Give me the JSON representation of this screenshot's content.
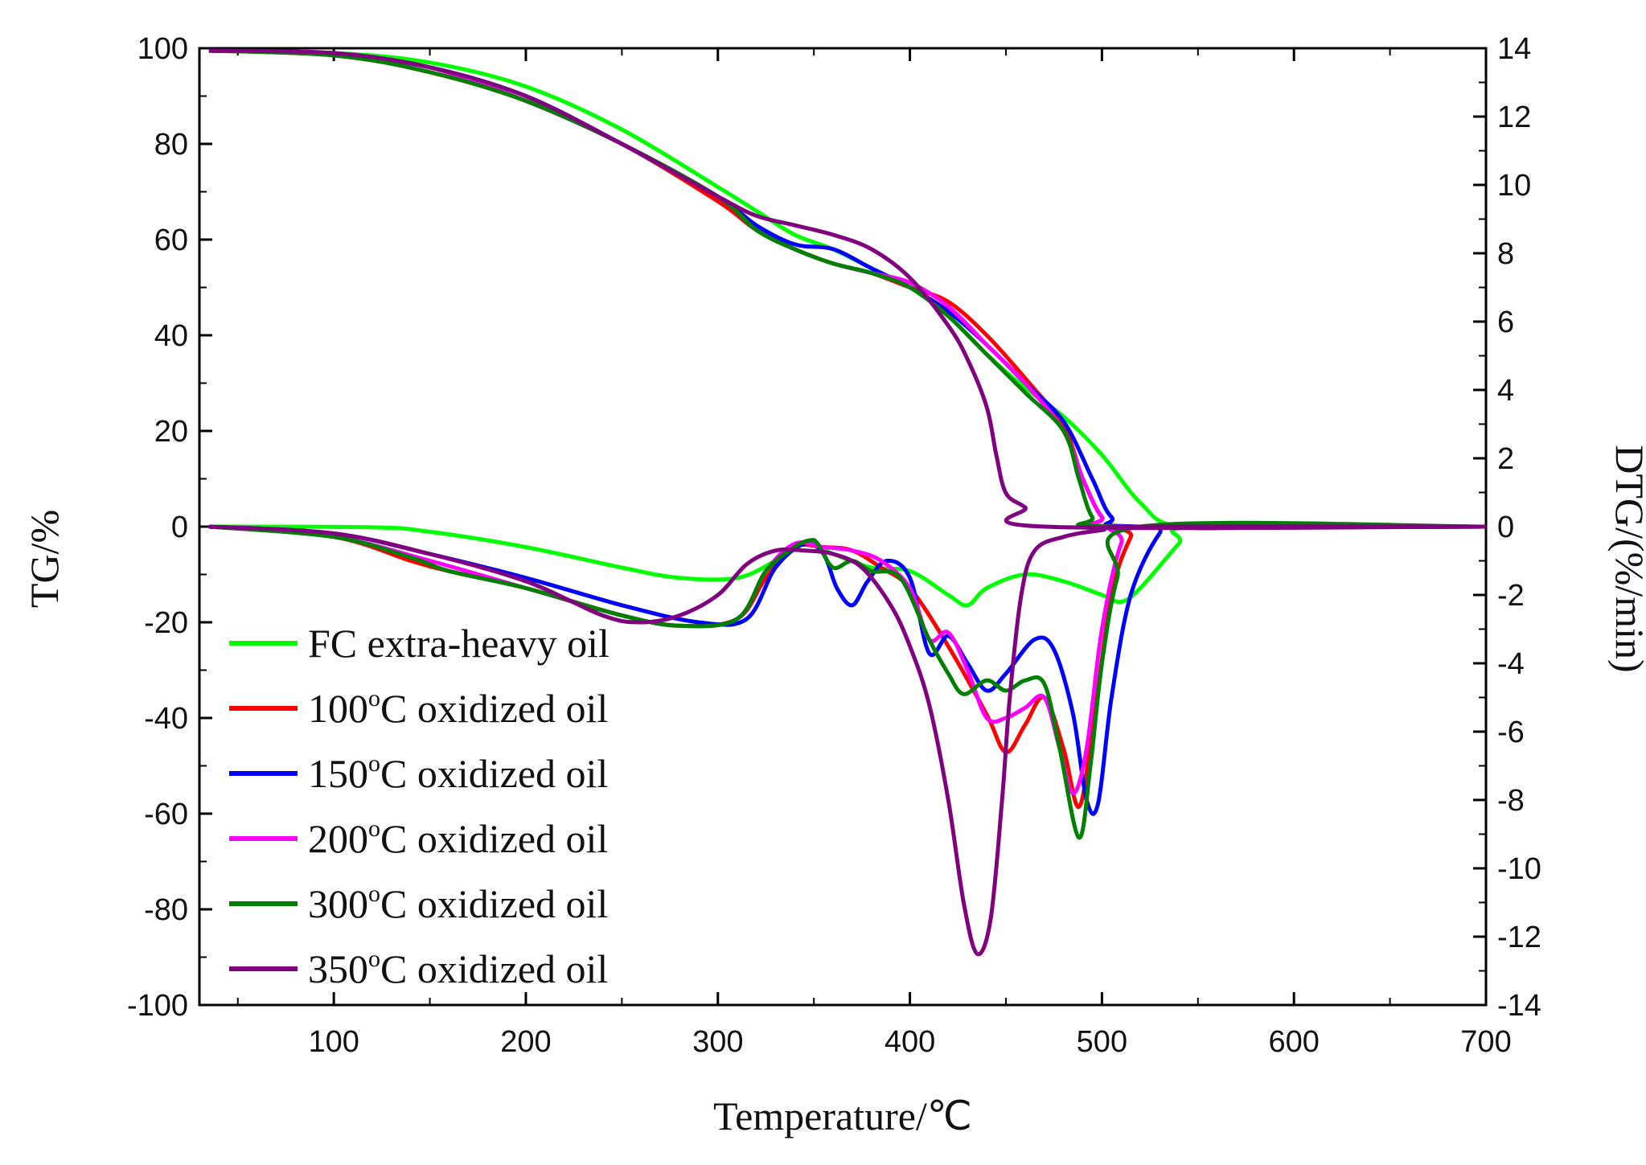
{
  "chart_data": {
    "type": "line",
    "xlabel": "Temperature/℃",
    "ylabel_left": "TG/%",
    "ylabel_right": "DTG/(%/min)",
    "xlim": [
      30,
      700
    ],
    "ylim_left": [
      -100,
      100
    ],
    "ylim_right": [
      -14,
      14
    ],
    "x_ticks": [
      "100",
      "200",
      "300",
      "400",
      "500",
      "600",
      "700"
    ],
    "y_ticks_left": [
      "100",
      "80",
      "60",
      "40",
      "20",
      "0",
      "-20",
      "-40",
      "-60",
      "-80",
      "-100"
    ],
    "y_ticks_right": [
      "14",
      "12",
      "10",
      "8",
      "6",
      "4",
      "2",
      "0",
      "-2",
      "-4",
      "-6",
      "-8",
      "-10",
      "-12",
      "-14"
    ],
    "legend_position": "lower-left",
    "series": [
      {
        "name": "FC extra-heavy oil",
        "legend_prefix": "FC extra-heavy oil",
        "legend_sup": "",
        "legend_suffix": "",
        "color": "#00ff00",
        "tg": [
          [
            35,
            99.5
          ],
          [
            100,
            99
          ],
          [
            150,
            97
          ],
          [
            200,
            92
          ],
          [
            250,
            83
          ],
          [
            300,
            71
          ],
          [
            320,
            66
          ],
          [
            340,
            61
          ],
          [
            360,
            58
          ],
          [
            380,
            54
          ],
          [
            400,
            50
          ],
          [
            420,
            44
          ],
          [
            440,
            36
          ],
          [
            460,
            29
          ],
          [
            480,
            23
          ],
          [
            500,
            15
          ],
          [
            520,
            5
          ],
          [
            540,
            0
          ],
          [
            600,
            0
          ],
          [
            700,
            0
          ]
        ],
        "dtg": [
          [
            35,
            0
          ],
          [
            120,
            -0.02
          ],
          [
            150,
            -0.15
          ],
          [
            200,
            -0.6
          ],
          [
            250,
            -1.2
          ],
          [
            280,
            -1.5
          ],
          [
            310,
            -1.5
          ],
          [
            330,
            -1.0
          ],
          [
            345,
            -0.5
          ],
          [
            360,
            -0.8
          ],
          [
            380,
            -1.2
          ],
          [
            400,
            -1.3
          ],
          [
            420,
            -2.0
          ],
          [
            430,
            -2.3
          ],
          [
            440,
            -1.8
          ],
          [
            460,
            -1.4
          ],
          [
            480,
            -1.6
          ],
          [
            500,
            -2.0
          ],
          [
            510,
            -2.2
          ],
          [
            520,
            -1.8
          ],
          [
            540,
            -0.5
          ],
          [
            550,
            0
          ],
          [
            700,
            0
          ]
        ]
      },
      {
        "name": "100°C oxidized oil",
        "legend_prefix": "100",
        "legend_sup": "o",
        "legend_suffix": "C oxidized oil",
        "color": "#ff0000",
        "tg": [
          [
            35,
            99.5
          ],
          [
            100,
            98.5
          ],
          [
            150,
            95
          ],
          [
            200,
            89
          ],
          [
            250,
            80
          ],
          [
            300,
            68
          ],
          [
            320,
            62
          ],
          [
            340,
            58
          ],
          [
            360,
            55
          ],
          [
            380,
            53
          ],
          [
            400,
            50
          ],
          [
            420,
            47
          ],
          [
            440,
            40
          ],
          [
            460,
            31
          ],
          [
            480,
            21
          ],
          [
            490,
            10
          ],
          [
            500,
            2
          ],
          [
            510,
            0
          ],
          [
            700,
            0
          ]
        ],
        "dtg": [
          [
            35,
            0
          ],
          [
            100,
            -0.3
          ],
          [
            140,
            -1.0
          ],
          [
            160,
            -1.3
          ],
          [
            200,
            -1.8
          ],
          [
            250,
            -2.6
          ],
          [
            280,
            -2.9
          ],
          [
            310,
            -2.7
          ],
          [
            325,
            -1.5
          ],
          [
            340,
            -0.6
          ],
          [
            355,
            -0.6
          ],
          [
            370,
            -0.7
          ],
          [
            385,
            -1.2
          ],
          [
            400,
            -1.8
          ],
          [
            420,
            -3.5
          ],
          [
            440,
            -5.5
          ],
          [
            450,
            -6.6
          ],
          [
            460,
            -5.8
          ],
          [
            470,
            -5.0
          ],
          [
            480,
            -6.5
          ],
          [
            488,
            -8.2
          ],
          [
            495,
            -6.0
          ],
          [
            505,
            -2.0
          ],
          [
            515,
            -0.3
          ],
          [
            520,
            0
          ],
          [
            700,
            0
          ]
        ]
      },
      {
        "name": "150°C oxidized oil",
        "legend_prefix": "150",
        "legend_sup": "o",
        "legend_suffix": "C oxidized oil",
        "color": "#0000ff",
        "tg": [
          [
            35,
            99.5
          ],
          [
            100,
            98.8
          ],
          [
            150,
            96
          ],
          [
            200,
            90
          ],
          [
            250,
            80
          ],
          [
            300,
            69
          ],
          [
            320,
            63
          ],
          [
            340,
            59
          ],
          [
            360,
            58
          ],
          [
            380,
            54
          ],
          [
            400,
            50
          ],
          [
            420,
            45
          ],
          [
            440,
            38
          ],
          [
            460,
            30
          ],
          [
            480,
            22
          ],
          [
            495,
            10
          ],
          [
            505,
            2
          ],
          [
            520,
            0
          ],
          [
            700,
            0
          ]
        ],
        "dtg": [
          [
            35,
            0
          ],
          [
            100,
            -0.2
          ],
          [
            150,
            -0.8
          ],
          [
            200,
            -1.5
          ],
          [
            250,
            -2.3
          ],
          [
            290,
            -2.8
          ],
          [
            315,
            -2.7
          ],
          [
            330,
            -1.2
          ],
          [
            345,
            -0.5
          ],
          [
            355,
            -0.8
          ],
          [
            362,
            -1.8
          ],
          [
            370,
            -2.3
          ],
          [
            378,
            -1.6
          ],
          [
            388,
            -1.0
          ],
          [
            400,
            -1.5
          ],
          [
            410,
            -3.7
          ],
          [
            420,
            -3.2
          ],
          [
            430,
            -4.0
          ],
          [
            440,
            -4.8
          ],
          [
            450,
            -4.3
          ],
          [
            465,
            -3.3
          ],
          [
            475,
            -3.6
          ],
          [
            485,
            -5.5
          ],
          [
            492,
            -8.0
          ],
          [
            498,
            -8.1
          ],
          [
            505,
            -5.0
          ],
          [
            515,
            -2.0
          ],
          [
            530,
            -0.2
          ],
          [
            540,
            0
          ],
          [
            700,
            0
          ]
        ]
      },
      {
        "name": "200°C oxidized oil",
        "legend_prefix": "200",
        "legend_sup": "o",
        "legend_suffix": "C oxidized oil",
        "color": "#ff00ff",
        "tg": [
          [
            35,
            99.5
          ],
          [
            100,
            98.8
          ],
          [
            150,
            96
          ],
          [
            200,
            89
          ],
          [
            250,
            80
          ],
          [
            300,
            69
          ],
          [
            320,
            62
          ],
          [
            340,
            58
          ],
          [
            360,
            55
          ],
          [
            380,
            53
          ],
          [
            400,
            51
          ],
          [
            420,
            46
          ],
          [
            440,
            38
          ],
          [
            460,
            30
          ],
          [
            480,
            20
          ],
          [
            490,
            10
          ],
          [
            500,
            2
          ],
          [
            510,
            0
          ],
          [
            700,
            0
          ]
        ],
        "dtg": [
          [
            35,
            0
          ],
          [
            100,
            -0.3
          ],
          [
            150,
            -1.0
          ],
          [
            200,
            -1.8
          ],
          [
            250,
            -2.6
          ],
          [
            280,
            -2.9
          ],
          [
            310,
            -2.7
          ],
          [
            325,
            -1.3
          ],
          [
            340,
            -0.5
          ],
          [
            355,
            -0.6
          ],
          [
            370,
            -0.7
          ],
          [
            385,
            -1.0
          ],
          [
            400,
            -1.8
          ],
          [
            410,
            -3.3
          ],
          [
            420,
            -3.1
          ],
          [
            430,
            -4.2
          ],
          [
            440,
            -5.6
          ],
          [
            450,
            -5.6
          ],
          [
            460,
            -5.3
          ],
          [
            470,
            -5.0
          ],
          [
            478,
            -6.5
          ],
          [
            485,
            -7.8
          ],
          [
            492,
            -6.5
          ],
          [
            500,
            -3.0
          ],
          [
            510,
            -0.5
          ],
          [
            520,
            0
          ],
          [
            700,
            0
          ]
        ]
      },
      {
        "name": "300°C oxidized oil",
        "legend_prefix": "300",
        "legend_sup": "o",
        "legend_suffix": "C oxidized oil",
        "color": "#008000",
        "tg": [
          [
            35,
            99.5
          ],
          [
            100,
            98.5
          ],
          [
            150,
            95
          ],
          [
            200,
            89
          ],
          [
            250,
            80
          ],
          [
            300,
            69
          ],
          [
            320,
            62
          ],
          [
            340,
            58
          ],
          [
            360,
            55
          ],
          [
            380,
            53
          ],
          [
            400,
            50
          ],
          [
            420,
            44
          ],
          [
            440,
            36
          ],
          [
            460,
            28
          ],
          [
            480,
            20
          ],
          [
            488,
            10
          ],
          [
            495,
            2
          ],
          [
            505,
            0
          ],
          [
            700,
            0
          ]
        ],
        "dtg": [
          [
            35,
            0
          ],
          [
            100,
            -0.3
          ],
          [
            140,
            -0.9
          ],
          [
            160,
            -1.3
          ],
          [
            200,
            -1.8
          ],
          [
            250,
            -2.6
          ],
          [
            280,
            -2.9
          ],
          [
            310,
            -2.7
          ],
          [
            325,
            -1.3
          ],
          [
            340,
            -0.6
          ],
          [
            348,
            -0.4
          ],
          [
            352,
            -0.5
          ],
          [
            360,
            -1.2
          ],
          [
            370,
            -1.0
          ],
          [
            380,
            -1.3
          ],
          [
            395,
            -1.5
          ],
          [
            410,
            -3.3
          ],
          [
            420,
            -4.3
          ],
          [
            428,
            -4.9
          ],
          [
            440,
            -4.5
          ],
          [
            450,
            -4.8
          ],
          [
            460,
            -4.5
          ],
          [
            470,
            -4.6
          ],
          [
            478,
            -6.5
          ],
          [
            488,
            -9.1
          ],
          [
            494,
            -7.0
          ],
          [
            500,
            -4.0
          ],
          [
            508,
            -1.5
          ],
          [
            520,
            0
          ],
          [
            700,
            0
          ]
        ]
      },
      {
        "name": "350°C oxidized oil",
        "legend_prefix": "350",
        "legend_sup": "o",
        "legend_suffix": "C oxidized oil",
        "color": "#800080",
        "tg": [
          [
            35,
            99.5
          ],
          [
            100,
            99
          ],
          [
            150,
            96
          ],
          [
            200,
            90
          ],
          [
            250,
            80
          ],
          [
            300,
            69
          ],
          [
            320,
            65
          ],
          [
            340,
            63
          ],
          [
            360,
            61
          ],
          [
            380,
            58
          ],
          [
            400,
            52
          ],
          [
            420,
            42
          ],
          [
            430,
            35
          ],
          [
            440,
            25
          ],
          [
            445,
            15
          ],
          [
            450,
            7
          ],
          [
            460,
            4
          ],
          [
            470,
            0
          ],
          [
            700,
            0
          ]
        ],
        "dtg": [
          [
            35,
            0
          ],
          [
            100,
            -0.2
          ],
          [
            150,
            -0.8
          ],
          [
            200,
            -1.6
          ],
          [
            240,
            -2.6
          ],
          [
            260,
            -2.8
          ],
          [
            280,
            -2.6
          ],
          [
            300,
            -2.0
          ],
          [
            315,
            -1.1
          ],
          [
            330,
            -0.7
          ],
          [
            345,
            -0.7
          ],
          [
            360,
            -0.8
          ],
          [
            375,
            -1.2
          ],
          [
            390,
            -2.3
          ],
          [
            400,
            -3.5
          ],
          [
            410,
            -5.2
          ],
          [
            420,
            -8.0
          ],
          [
            428,
            -11.0
          ],
          [
            435,
            -12.5
          ],
          [
            442,
            -11.5
          ],
          [
            448,
            -8.0
          ],
          [
            452,
            -5.0
          ],
          [
            458,
            -2.0
          ],
          [
            465,
            -0.7
          ],
          [
            480,
            -0.3
          ],
          [
            500,
            -0.1
          ],
          [
            520,
            0
          ],
          [
            700,
            0
          ]
        ]
      }
    ]
  }
}
